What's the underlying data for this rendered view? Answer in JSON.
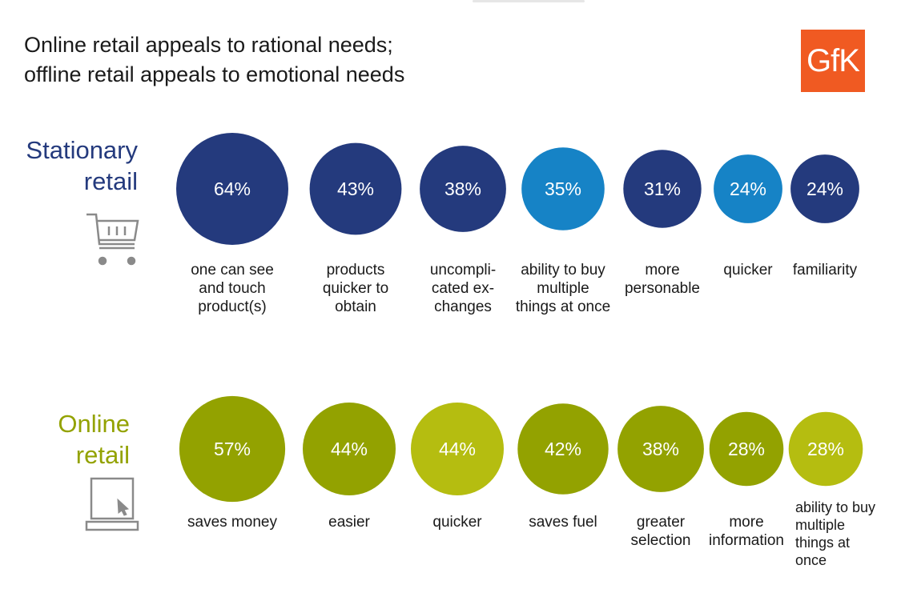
{
  "title_lines": [
    "Online retail appeals to rational needs;",
    "offline retail appeals to emotional needs"
  ],
  "logo_text": "GfK",
  "colors": {
    "logo_bg": "#f05a22",
    "stationary_label": "#243a7d",
    "online_label": "#93a200",
    "dark_blue": "#243a7d",
    "light_blue": "#1683c6",
    "dark_green": "#93a200",
    "light_green": "#b5bd10",
    "icon": "#8a8a8a"
  },
  "icons": {
    "stationary": "shopping-cart-icon",
    "online": "laptop-icon"
  },
  "chart_data": {
    "type": "bubble",
    "unit": "%",
    "series": [
      {
        "name": "Stationary retail",
        "name_lines": [
          "Stationary",
          "retail"
        ],
        "items": [
          {
            "value": 64,
            "label": "64%",
            "category_lines": [
              "one can see",
              "and touch",
              "product(s)"
            ],
            "color": "dark"
          },
          {
            "value": 43,
            "label": "43%",
            "category_lines": [
              "products",
              "quicker to",
              "obtain"
            ],
            "color": "dark"
          },
          {
            "value": 38,
            "label": "38%",
            "category_lines": [
              "uncompli-",
              "cated ex-",
              "changes"
            ],
            "color": "dark"
          },
          {
            "value": 35,
            "label": "35%",
            "category_lines": [
              "ability to buy",
              "multiple",
              "things at once"
            ],
            "color": "light"
          },
          {
            "value": 31,
            "label": "31%",
            "category_lines": [
              "more",
              "personable"
            ],
            "color": "dark"
          },
          {
            "value": 24,
            "label": "24%",
            "category_lines": [
              "quicker"
            ],
            "color": "light"
          },
          {
            "value": 24,
            "label": "24%",
            "category_lines": [
              "familiarity"
            ],
            "color": "dark"
          }
        ]
      },
      {
        "name": "Online retail",
        "name_lines": [
          "Online",
          "retail"
        ],
        "items": [
          {
            "value": 57,
            "label": "57%",
            "category_lines": [
              "saves money"
            ],
            "color": "dark"
          },
          {
            "value": 44,
            "label": "44%",
            "category_lines": [
              "easier"
            ],
            "color": "dark"
          },
          {
            "value": 44,
            "label": "44%",
            "category_lines": [
              "quicker"
            ],
            "color": "light"
          },
          {
            "value": 42,
            "label": "42%",
            "category_lines": [
              "saves fuel"
            ],
            "color": "dark"
          },
          {
            "value": 38,
            "label": "38%",
            "category_lines": [
              "greater",
              "selection"
            ],
            "color": "dark"
          },
          {
            "value": 28,
            "label": "28%",
            "category_lines": [
              "more",
              "information"
            ],
            "color": "dark"
          },
          {
            "value": 28,
            "label": "28%",
            "category_lines": [
              "ability to buy",
              "multiple",
              "things at",
              "once"
            ],
            "color": "light"
          }
        ]
      }
    ]
  }
}
